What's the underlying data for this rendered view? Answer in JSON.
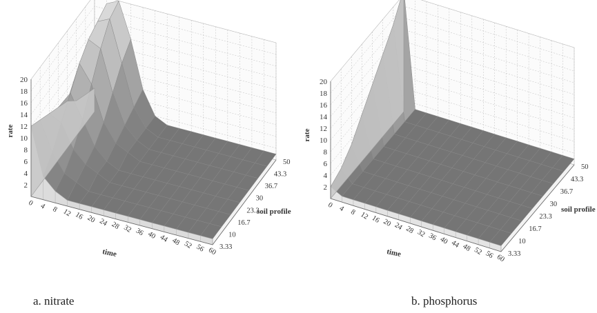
{
  "chart_data": [
    {
      "type": "surface3d",
      "caption": "a. nitrate",
      "zlabel": "rate",
      "xlabel": "time",
      "ylabel": "soil profile",
      "x_ticks": [
        "0",
        "4",
        "8",
        "12",
        "16",
        "20",
        "24",
        "28",
        "32",
        "36",
        "40",
        "44",
        "48",
        "52",
        "56",
        "60"
      ],
      "y_ticks": [
        "3.33",
        "10",
        "16.7",
        "23.3",
        "30",
        "36.7",
        "43.3",
        "50"
      ],
      "z_ticks": [
        "2",
        "4",
        "6",
        "8",
        "10",
        "12",
        "14",
        "16",
        "18",
        "20"
      ],
      "zlim": [
        0,
        20
      ],
      "grid": true,
      "surface_colors": {
        "front_face": "#dcdcdc",
        "top": "#6e6e6e",
        "grid": "#bdbdbd"
      },
      "series": [
        {
          "y": "3.33",
          "z": [
            12,
            4,
            2,
            1,
            1,
            1,
            1,
            1,
            1,
            1,
            1,
            1,
            1,
            1,
            1,
            1
          ]
        },
        {
          "y": "10",
          "z": [
            11,
            6,
            3,
            2,
            1,
            1,
            1,
            1,
            1,
            1,
            1,
            1,
            1,
            1,
            1,
            1
          ]
        },
        {
          "y": "16.7",
          "z": [
            10,
            9,
            5,
            3,
            2,
            1,
            1,
            1,
            1,
            1,
            1,
            1,
            1,
            1,
            1,
            1
          ]
        },
        {
          "y": "23.3",
          "z": [
            9,
            12,
            8,
            4,
            2,
            1,
            1,
            1,
            1,
            1,
            1,
            1,
            1,
            1,
            1,
            1
          ]
        },
        {
          "y": "30",
          "z": [
            8,
            15,
            12,
            6,
            3,
            2,
            1,
            1,
            1,
            1,
            1,
            1,
            1,
            1,
            1,
            1
          ]
        },
        {
          "y": "36.7",
          "z": [
            6,
            17,
            16,
            9,
            4,
            2,
            1,
            1,
            1,
            1,
            1,
            1,
            1,
            1,
            1,
            1
          ]
        },
        {
          "y": "43.3",
          "z": [
            5,
            18,
            19,
            12,
            5,
            2,
            1,
            1,
            1,
            1,
            1,
            1,
            1,
            1,
            1,
            1
          ]
        },
        {
          "y": "50",
          "z": [
            4,
            19,
            20,
            14,
            6,
            2,
            1,
            1,
            1,
            1,
            1,
            1,
            1,
            1,
            1,
            1
          ]
        }
      ]
    },
    {
      "type": "surface3d",
      "caption": "b. phosphorus",
      "zlabel": "rate",
      "xlabel": "time",
      "ylabel": "soil profile",
      "x_ticks": [
        "0",
        "4",
        "8",
        "12",
        "16",
        "20",
        "24",
        "28",
        "32",
        "36",
        "40",
        "44",
        "48",
        "52",
        "56",
        "60"
      ],
      "y_ticks": [
        "3.33",
        "10",
        "16.7",
        "23.3",
        "30",
        "36.7",
        "43.3",
        "50"
      ],
      "z_ticks": [
        "2",
        "4",
        "6",
        "8",
        "10",
        "12",
        "14",
        "16",
        "18",
        "20"
      ],
      "zlim": [
        0,
        20
      ],
      "grid": true,
      "surface_colors": {
        "front_face": "#e4e4e4",
        "top": "#737373",
        "grid": "#bdbdbd"
      },
      "series": [
        {
          "y": "3.33",
          "z": [
            2,
            1,
            1,
            1,
            1,
            1,
            1,
            1,
            1,
            1,
            1,
            1,
            1,
            1,
            1,
            1
          ]
        },
        {
          "y": "10",
          "z": [
            3,
            1,
            1,
            1,
            1,
            1,
            1,
            1,
            1,
            1,
            1,
            1,
            1,
            1,
            1,
            1
          ]
        },
        {
          "y": "16.7",
          "z": [
            5,
            1,
            1,
            1,
            1,
            1,
            1,
            1,
            1,
            1,
            1,
            1,
            1,
            1,
            1,
            1
          ]
        },
        {
          "y": "23.3",
          "z": [
            8,
            1,
            1,
            1,
            1,
            1,
            1,
            1,
            1,
            1,
            1,
            1,
            1,
            1,
            1,
            1
          ]
        },
        {
          "y": "30",
          "z": [
            11,
            1,
            1,
            1,
            1,
            1,
            1,
            1,
            1,
            1,
            1,
            1,
            1,
            1,
            1,
            1
          ]
        },
        {
          "y": "36.7",
          "z": [
            14,
            1,
            1,
            1,
            1,
            1,
            1,
            1,
            1,
            1,
            1,
            1,
            1,
            1,
            1,
            1
          ]
        },
        {
          "y": "43.3",
          "z": [
            17,
            1,
            1,
            1,
            1,
            1,
            1,
            1,
            1,
            1,
            1,
            1,
            1,
            1,
            1,
            1
          ]
        },
        {
          "y": "50",
          "z": [
            21,
            1,
            1,
            1,
            1,
            1,
            1,
            1,
            1,
            1,
            1,
            1,
            1,
            1,
            1,
            1
          ]
        }
      ]
    }
  ]
}
